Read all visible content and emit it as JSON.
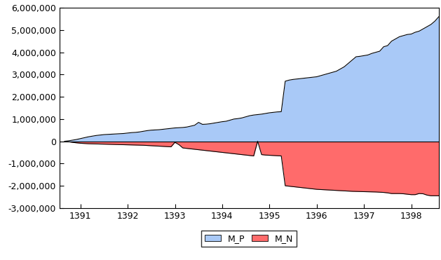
{
  "chart_data": {
    "type": "area",
    "categories": [
      null,
      null,
      null,
      null,
      "1391",
      null,
      null,
      null,
      null,
      null,
      null,
      null,
      null,
      null,
      null,
      null,
      "1392",
      null,
      null,
      null,
      null,
      null,
      null,
      null,
      null,
      null,
      null,
      null,
      "1393",
      null,
      null,
      null,
      null,
      null,
      null,
      null,
      null,
      null,
      null,
      null,
      "1394",
      null,
      null,
      null,
      null,
      null,
      null,
      null,
      null,
      null,
      null,
      null,
      "1395",
      null,
      null,
      null,
      null,
      null,
      null,
      null,
      null,
      null,
      null,
      null,
      "1396",
      null,
      null,
      null,
      null,
      null,
      null,
      null,
      null,
      null,
      null,
      null,
      "1397",
      null,
      null,
      null,
      null,
      null,
      null,
      null,
      null,
      null,
      null,
      null,
      "1398",
      null,
      null,
      null,
      null,
      null,
      null,
      null
    ],
    "series": [
      {
        "name": "M_P",
        "color": "#a9c9f7",
        "values": [
          0,
          20000,
          50000,
          80000,
          120000,
          160000,
          200000,
          230000,
          260000,
          280000,
          300000,
          310000,
          320000,
          330000,
          340000,
          350000,
          370000,
          390000,
          400000,
          420000,
          450000,
          480000,
          500000,
          510000,
          520000,
          540000,
          560000,
          580000,
          600000,
          610000,
          620000,
          640000,
          680000,
          720000,
          850000,
          760000,
          770000,
          790000,
          820000,
          850000,
          880000,
          900000,
          950000,
          1000000,
          1020000,
          1050000,
          1100000,
          1150000,
          1180000,
          1200000,
          1220000,
          1250000,
          1280000,
          1300000,
          1320000,
          1330000,
          2700000,
          2750000,
          2780000,
          2800000,
          2820000,
          2840000,
          2860000,
          2880000,
          2900000,
          2950000,
          3000000,
          3050000,
          3100000,
          3150000,
          3250000,
          3350000,
          3500000,
          3650000,
          3800000,
          3820000,
          3850000,
          3880000,
          3950000,
          4000000,
          4050000,
          4250000,
          4300000,
          4500000,
          4600000,
          4700000,
          4750000,
          4800000,
          4820000,
          4900000,
          4950000,
          5050000,
          5150000,
          5250000,
          5400000,
          5600000
        ]
      },
      {
        "name": "M_N",
        "color": "#ff6b6b",
        "values": [
          0,
          -20000,
          -50000,
          -70000,
          -90000,
          -100000,
          -110000,
          -115000,
          -120000,
          -125000,
          -130000,
          -135000,
          -140000,
          -145000,
          -150000,
          -155000,
          -160000,
          -165000,
          -170000,
          -175000,
          -180000,
          -190000,
          -200000,
          -210000,
          -220000,
          -230000,
          -240000,
          -250000,
          -50000,
          -150000,
          -300000,
          -320000,
          -340000,
          -360000,
          -380000,
          -400000,
          -420000,
          -440000,
          -460000,
          -480000,
          -500000,
          -520000,
          -540000,
          -560000,
          -580000,
          -600000,
          -620000,
          -640000,
          -660000,
          0,
          -600000,
          -620000,
          -630000,
          -640000,
          -650000,
          -660000,
          -2000000,
          -2020000,
          -2040000,
          -2060000,
          -2080000,
          -2100000,
          -2120000,
          -2140000,
          -2160000,
          -2170000,
          -2180000,
          -2190000,
          -2200000,
          -2210000,
          -2220000,
          -2230000,
          -2240000,
          -2250000,
          -2255000,
          -2260000,
          -2265000,
          -2270000,
          -2275000,
          -2280000,
          -2290000,
          -2300000,
          -2320000,
          -2350000,
          -2350000,
          -2350000,
          -2360000,
          -2380000,
          -2400000,
          -2400000,
          -2350000,
          -2360000,
          -2420000,
          -2450000,
          -2450000,
          -2450000
        ]
      }
    ],
    "ylim": [
      -3000000,
      6000000
    ],
    "yticks": [
      {
        "value": -3000000,
        "label": "-3,000,000"
      },
      {
        "value": -2000000,
        "label": "-2,000,000"
      },
      {
        "value": -1000000,
        "label": "-1,000,000"
      },
      0,
      {
        "value": 1000000,
        "label": "1,000,000"
      },
      {
        "value": 2000000,
        "label": "2,000,000"
      },
      {
        "value": 3000000,
        "label": "3,000,000"
      },
      {
        "value": 4000000,
        "label": "4,000,000"
      },
      {
        "value": 5000000,
        "label": "5,000,000"
      },
      {
        "value": 6000000,
        "label": "6,000,000"
      }
    ],
    "grid": false,
    "legend": "bottom"
  }
}
